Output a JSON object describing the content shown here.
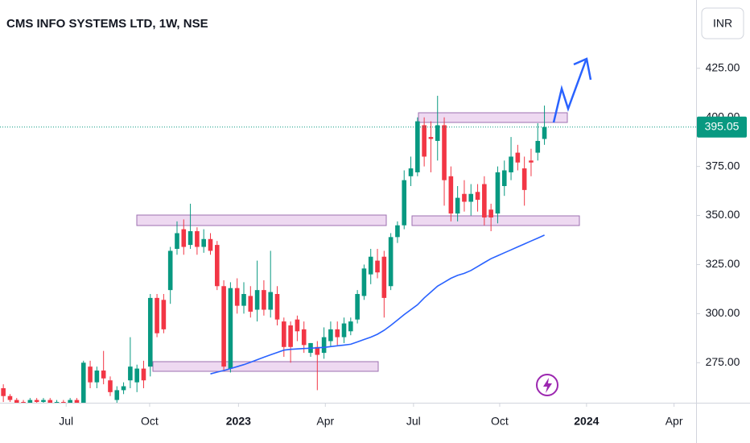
{
  "chart_data": {
    "type": "candlestick",
    "title": "CMS INFO SYSTEMS LTD, 1W, NSE",
    "currency": "INR",
    "categories": [
      null,
      null,
      null,
      null,
      null,
      null,
      null,
      null,
      null,
      null,
      null,
      null,
      null,
      null,
      null,
      null,
      null,
      null,
      null,
      null,
      null,
      null,
      null,
      null,
      null,
      null,
      null,
      null,
      null,
      null,
      null,
      null,
      null,
      null,
      null,
      null,
      null,
      null,
      null,
      null,
      null,
      null,
      null,
      null,
      null,
      null,
      null,
      null,
      null,
      null,
      null,
      null,
      null,
      null,
      null,
      null,
      null,
      null,
      null,
      null,
      null,
      null,
      null,
      null,
      null,
      null,
      null,
      null,
      null,
      null,
      null,
      null,
      null,
      null,
      null,
      null,
      null,
      null,
      null,
      null,
      null,
      null
    ],
    "open": [
      262,
      258,
      256,
      255,
      254,
      256,
      255,
      256,
      253,
      255,
      254,
      256,
      252,
      273,
      265,
      271,
      266,
      256,
      261,
      266,
      265,
      272,
      273,
      308,
      307,
      312,
      333,
      343,
      335,
      342,
      334,
      338,
      335,
      314,
      272,
      313,
      304,
      309,
      302,
      312,
      302,
      310,
      296,
      294,
      297,
      292,
      280,
      283,
      280,
      286,
      292,
      288,
      291,
      297,
      309,
      320,
      327,
      329,
      314,
      339,
      345,
      370,
      372,
      396,
      390,
      388,
      396,
      370,
      351,
      361,
      357,
      362,
      366,
      353,
      351,
      365,
      372,
      382,
      374,
      378,
      382,
      389
    ],
    "high": [
      264,
      259,
      257,
      256,
      257,
      257,
      257,
      257,
      256,
      256,
      257,
      257,
      276,
      276,
      273,
      281,
      268,
      263,
      265,
      288,
      274,
      276,
      310,
      310,
      310,
      334,
      347,
      348,
      356,
      344,
      343,
      341,
      337,
      317,
      316,
      318,
      316,
      314,
      327,
      317,
      332,
      314,
      298,
      296,
      299,
      296,
      285,
      286,
      293,
      296,
      296,
      298,
      298,
      312,
      325,
      333,
      333,
      332,
      341,
      347,
      373,
      380,
      400,
      400,
      398,
      411,
      400,
      375,
      365,
      368,
      366,
      366,
      370,
      356,
      375,
      378,
      390,
      386,
      380,
      384,
      397,
      406
    ],
    "low": [
      255,
      255,
      253,
      252,
      253,
      254,
      254,
      253,
      252,
      253,
      253,
      252,
      250,
      262,
      262,
      264,
      258,
      254,
      259,
      262,
      260,
      262,
      268,
      288,
      290,
      305,
      330,
      330,
      333,
      330,
      331,
      330,
      312,
      271,
      270,
      300,
      300,
      298,
      296,
      299,
      298,
      294,
      278,
      275,
      286,
      280,
      278,
      261,
      277,
      283,
      284,
      285,
      289,
      295,
      307,
      315,
      318,
      298,
      312,
      336,
      343,
      365,
      370,
      375,
      372,
      378,
      355,
      347,
      347,
      352,
      350,
      352,
      345,
      342,
      346,
      360,
      368,
      373,
      355,
      370,
      378,
      386
    ],
    "close": [
      258,
      256,
      254,
      253,
      256,
      255,
      256,
      254,
      255,
      254,
      256,
      253,
      275,
      265,
      271,
      267,
      260,
      261,
      263,
      273,
      272,
      266,
      308,
      290,
      292,
      332,
      341,
      334,
      342,
      334,
      338,
      332,
      314,
      273,
      313,
      304,
      310,
      301,
      312,
      302,
      311,
      297,
      283,
      283,
      291,
      284,
      285,
      279,
      288,
      292,
      288,
      295,
      296,
      310,
      323,
      329,
      321,
      308,
      339,
      345,
      368,
      374,
      398,
      380,
      389,
      396,
      368,
      351,
      359,
      357,
      361,
      358,
      349,
      349,
      372,
      373,
      380,
      377,
      363,
      377,
      388,
      395.05
    ],
    "up_color": "#089981",
    "down_color": "#f23645",
    "moving_average": {
      "color": "#2962ff",
      "values": [
        null,
        null,
        null,
        null,
        null,
        null,
        null,
        null,
        null,
        null,
        null,
        null,
        null,
        null,
        null,
        null,
        null,
        null,
        null,
        null,
        null,
        null,
        null,
        null,
        null,
        null,
        null,
        null,
        null,
        null,
        null,
        269.3,
        270.2,
        271,
        272,
        273,
        274,
        275.2,
        276.5,
        277.8,
        279,
        280.2,
        281.4,
        281.8,
        282,
        282.2,
        282.4,
        282.6,
        282.8,
        283.2,
        283.6,
        284,
        284.4,
        285.6,
        286.8,
        288,
        289.5,
        291.5,
        294,
        296.7,
        299.5,
        302,
        304.5,
        308,
        311,
        314,
        316,
        318,
        319.5,
        320.5,
        322,
        324,
        326,
        328,
        329.5,
        331,
        332.5,
        334,
        335.5,
        337,
        338.5,
        340
      ]
    },
    "last_price": 395.05,
    "xlim": [
      -0.5,
      103.7
    ],
    "xticks": [
      {
        "value": 9.4,
        "label": "Jul"
      },
      {
        "value": 21.9,
        "label": "Oct"
      },
      {
        "value": 35.2,
        "label": "2023"
      },
      {
        "value": 48.2,
        "label": "Apr"
      },
      {
        "value": 61.4,
        "label": "Jul"
      },
      {
        "value": 74.3,
        "label": "Oct"
      },
      {
        "value": 87.3,
        "label": "2024"
      },
      {
        "value": 100.4,
        "label": "Apr"
      }
    ],
    "ylim": [
      254.6,
      459.8
    ],
    "yticks": [
      {
        "value": 275,
        "label": "275.00"
      },
      {
        "value": 300,
        "label": "300.00"
      },
      {
        "value": 325,
        "label": "325.00"
      },
      {
        "value": 350,
        "label": "350.00"
      },
      {
        "value": 375,
        "label": "375.00"
      },
      {
        "value": 400,
        "label": "400.00"
      },
      {
        "value": 425,
        "label": "425.00"
      }
    ]
  }
}
